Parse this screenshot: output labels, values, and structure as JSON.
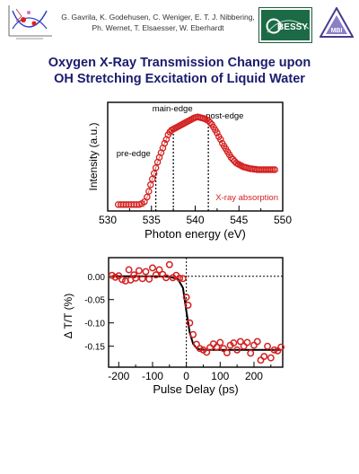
{
  "authors_line1": "G. Gavrila, K. Godehusen, C. Weniger, E. T. J. Nibbering,",
  "authors_line2": "Ph. Wernet, T. Elsaesser, W. Eberhardt",
  "logos": {
    "bessy": "BESSY",
    "mbi": "MBI"
  },
  "title_line1": "Oxygen X-Ray Transmission Change upon",
  "title_line2": "OH Stretching Excitation of Liquid Water",
  "colors": {
    "title": "#1b1b6e",
    "marker": "#d42020",
    "line": "#000000"
  },
  "chart_data": [
    {
      "type": "scatter",
      "xlabel": "Photon energy (eV)",
      "ylabel": "Intensity (a.u.)",
      "xlim": [
        530,
        550
      ],
      "xticks": [
        "530",
        "535",
        "540",
        "545",
        "550"
      ],
      "annotations": [
        "pre-edge",
        "main-edge",
        "post-edge"
      ],
      "edge_markers": [
        535.5,
        537.5,
        541.5
      ],
      "series_label": "X-ray absorption",
      "x": [
        531.2,
        531.5,
        531.8,
        532.1,
        532.4,
        532.7,
        533,
        533.3,
        533.6,
        533.9,
        534.2,
        534.5,
        534.7,
        534.9,
        535.1,
        535.3,
        535.5,
        535.7,
        535.9,
        536.1,
        536.3,
        536.5,
        536.7,
        536.9,
        537.1,
        537.3,
        537.5,
        537.7,
        537.9,
        538.1,
        538.3,
        538.5,
        538.7,
        538.9,
        539.1,
        539.3,
        539.5,
        539.7,
        539.9,
        540.1,
        540.3,
        540.5,
        540.7,
        540.9,
        541.1,
        541.3,
        541.5,
        541.7,
        541.9,
        542.1,
        542.3,
        542.5,
        542.7,
        542.9,
        543.1,
        543.3,
        543.5,
        543.7,
        543.9,
        544.1,
        544.3,
        544.5,
        544.7,
        544.9,
        545.1,
        545.3,
        545.5,
        545.7,
        545.9,
        546.1,
        546.3,
        546.5,
        546.7,
        546.9,
        547.1,
        547.3,
        547.5,
        547.7,
        547.9,
        548.1,
        548.3,
        548.5,
        548.7,
        548.9,
        549.1
      ],
      "y": [
        0.03,
        0.03,
        0.03,
        0.03,
        0.03,
        0.03,
        0.03,
        0.03,
        0.03,
        0.04,
        0.06,
        0.11,
        0.17,
        0.24,
        0.3,
        0.36,
        0.42,
        0.48,
        0.53,
        0.58,
        0.63,
        0.68,
        0.72,
        0.77,
        0.8,
        0.82,
        0.83,
        0.84,
        0.85,
        0.86,
        0.87,
        0.88,
        0.89,
        0.9,
        0.91,
        0.92,
        0.93,
        0.94,
        0.95,
        0.955,
        0.96,
        0.955,
        0.95,
        0.945,
        0.94,
        0.93,
        0.92,
        0.9,
        0.88,
        0.85,
        0.82,
        0.79,
        0.75,
        0.72,
        0.68,
        0.65,
        0.62,
        0.59,
        0.56,
        0.53,
        0.51,
        0.49,
        0.47,
        0.46,
        0.45,
        0.44,
        0.43,
        0.425,
        0.42,
        0.415,
        0.41,
        0.41,
        0.405,
        0.405,
        0.4,
        0.4,
        0.4,
        0.4,
        0.4,
        0.4,
        0.4,
        0.4,
        0.4,
        0.4,
        0.4
      ]
    },
    {
      "type": "scatter",
      "xlabel": "Pulse Delay (ps)",
      "ylabel": "Δ T/T  (%)",
      "xlim": [
        -230,
        285
      ],
      "ylim": [
        -0.195,
        0.04
      ],
      "xticks": [
        -200,
        -100,
        0,
        100,
        200
      ],
      "yticks": [
        0.0,
        -0.05,
        -0.1,
        -0.15
      ],
      "ytick_labels": [
        "0.00",
        "-0.05",
        "-0.10",
        "-0.15"
      ],
      "x": [
        -220,
        -210,
        -200,
        -190,
        -180,
        -170,
        -165,
        -155,
        -150,
        -140,
        -130,
        -120,
        -110,
        -100,
        -90,
        -80,
        -70,
        -60,
        -50,
        -40,
        -30,
        -20,
        -10,
        0,
        5,
        10,
        20,
        30,
        40,
        50,
        60,
        70,
        80,
        90,
        100,
        110,
        120,
        130,
        140,
        150,
        160,
        170,
        180,
        190,
        200,
        210,
        220,
        230,
        240,
        250,
        260,
        270,
        280
      ],
      "y": [
        0.002,
        -0.002,
        0.001,
        -0.007,
        -0.01,
        0.014,
        -0.008,
        0.003,
        -0.004,
        0.012,
        -0.005,
        0.01,
        -0.006,
        0.018,
        0.003,
        0.014,
        0.004,
        -0.003,
        0.025,
        -0.003,
        0.002,
        -0.004,
        -0.005,
        -0.045,
        -0.062,
        -0.1,
        -0.125,
        -0.146,
        -0.155,
        -0.158,
        -0.163,
        -0.153,
        -0.145,
        -0.152,
        -0.142,
        -0.155,
        -0.164,
        -0.148,
        -0.143,
        -0.158,
        -0.14,
        -0.15,
        -0.142,
        -0.165,
        -0.148,
        -0.14,
        -0.18,
        -0.172,
        -0.15,
        -0.175,
        -0.158,
        -0.16,
        -0.152
      ],
      "fit": {
        "type": "line",
        "x": [
          -220,
          -100,
          -50,
          -25,
          -10,
          0,
          10,
          20,
          30,
          40,
          60,
          100,
          150,
          200,
          280
        ],
        "y": [
          0,
          0,
          -0.001,
          -0.006,
          -0.025,
          -0.075,
          -0.121,
          -0.145,
          -0.154,
          -0.157,
          -0.158,
          -0.158,
          -0.158,
          -0.158,
          -0.158
        ]
      }
    }
  ]
}
